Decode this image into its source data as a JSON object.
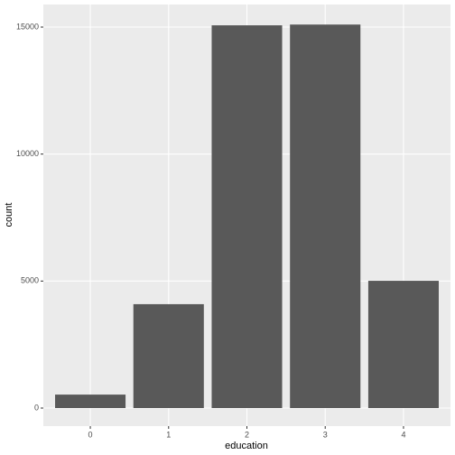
{
  "chart_data": {
    "type": "bar",
    "categories": [
      "0",
      "1",
      "2",
      "3",
      "4"
    ],
    "values": [
      530,
      4090,
      15070,
      15100,
      5010
    ],
    "color": "#595959",
    "x_label": "education",
    "y_label": "count",
    "ylim": [
      -711,
      15889
    ],
    "yticks": [
      0,
      5000,
      10000,
      15000
    ],
    "grid": true
  }
}
